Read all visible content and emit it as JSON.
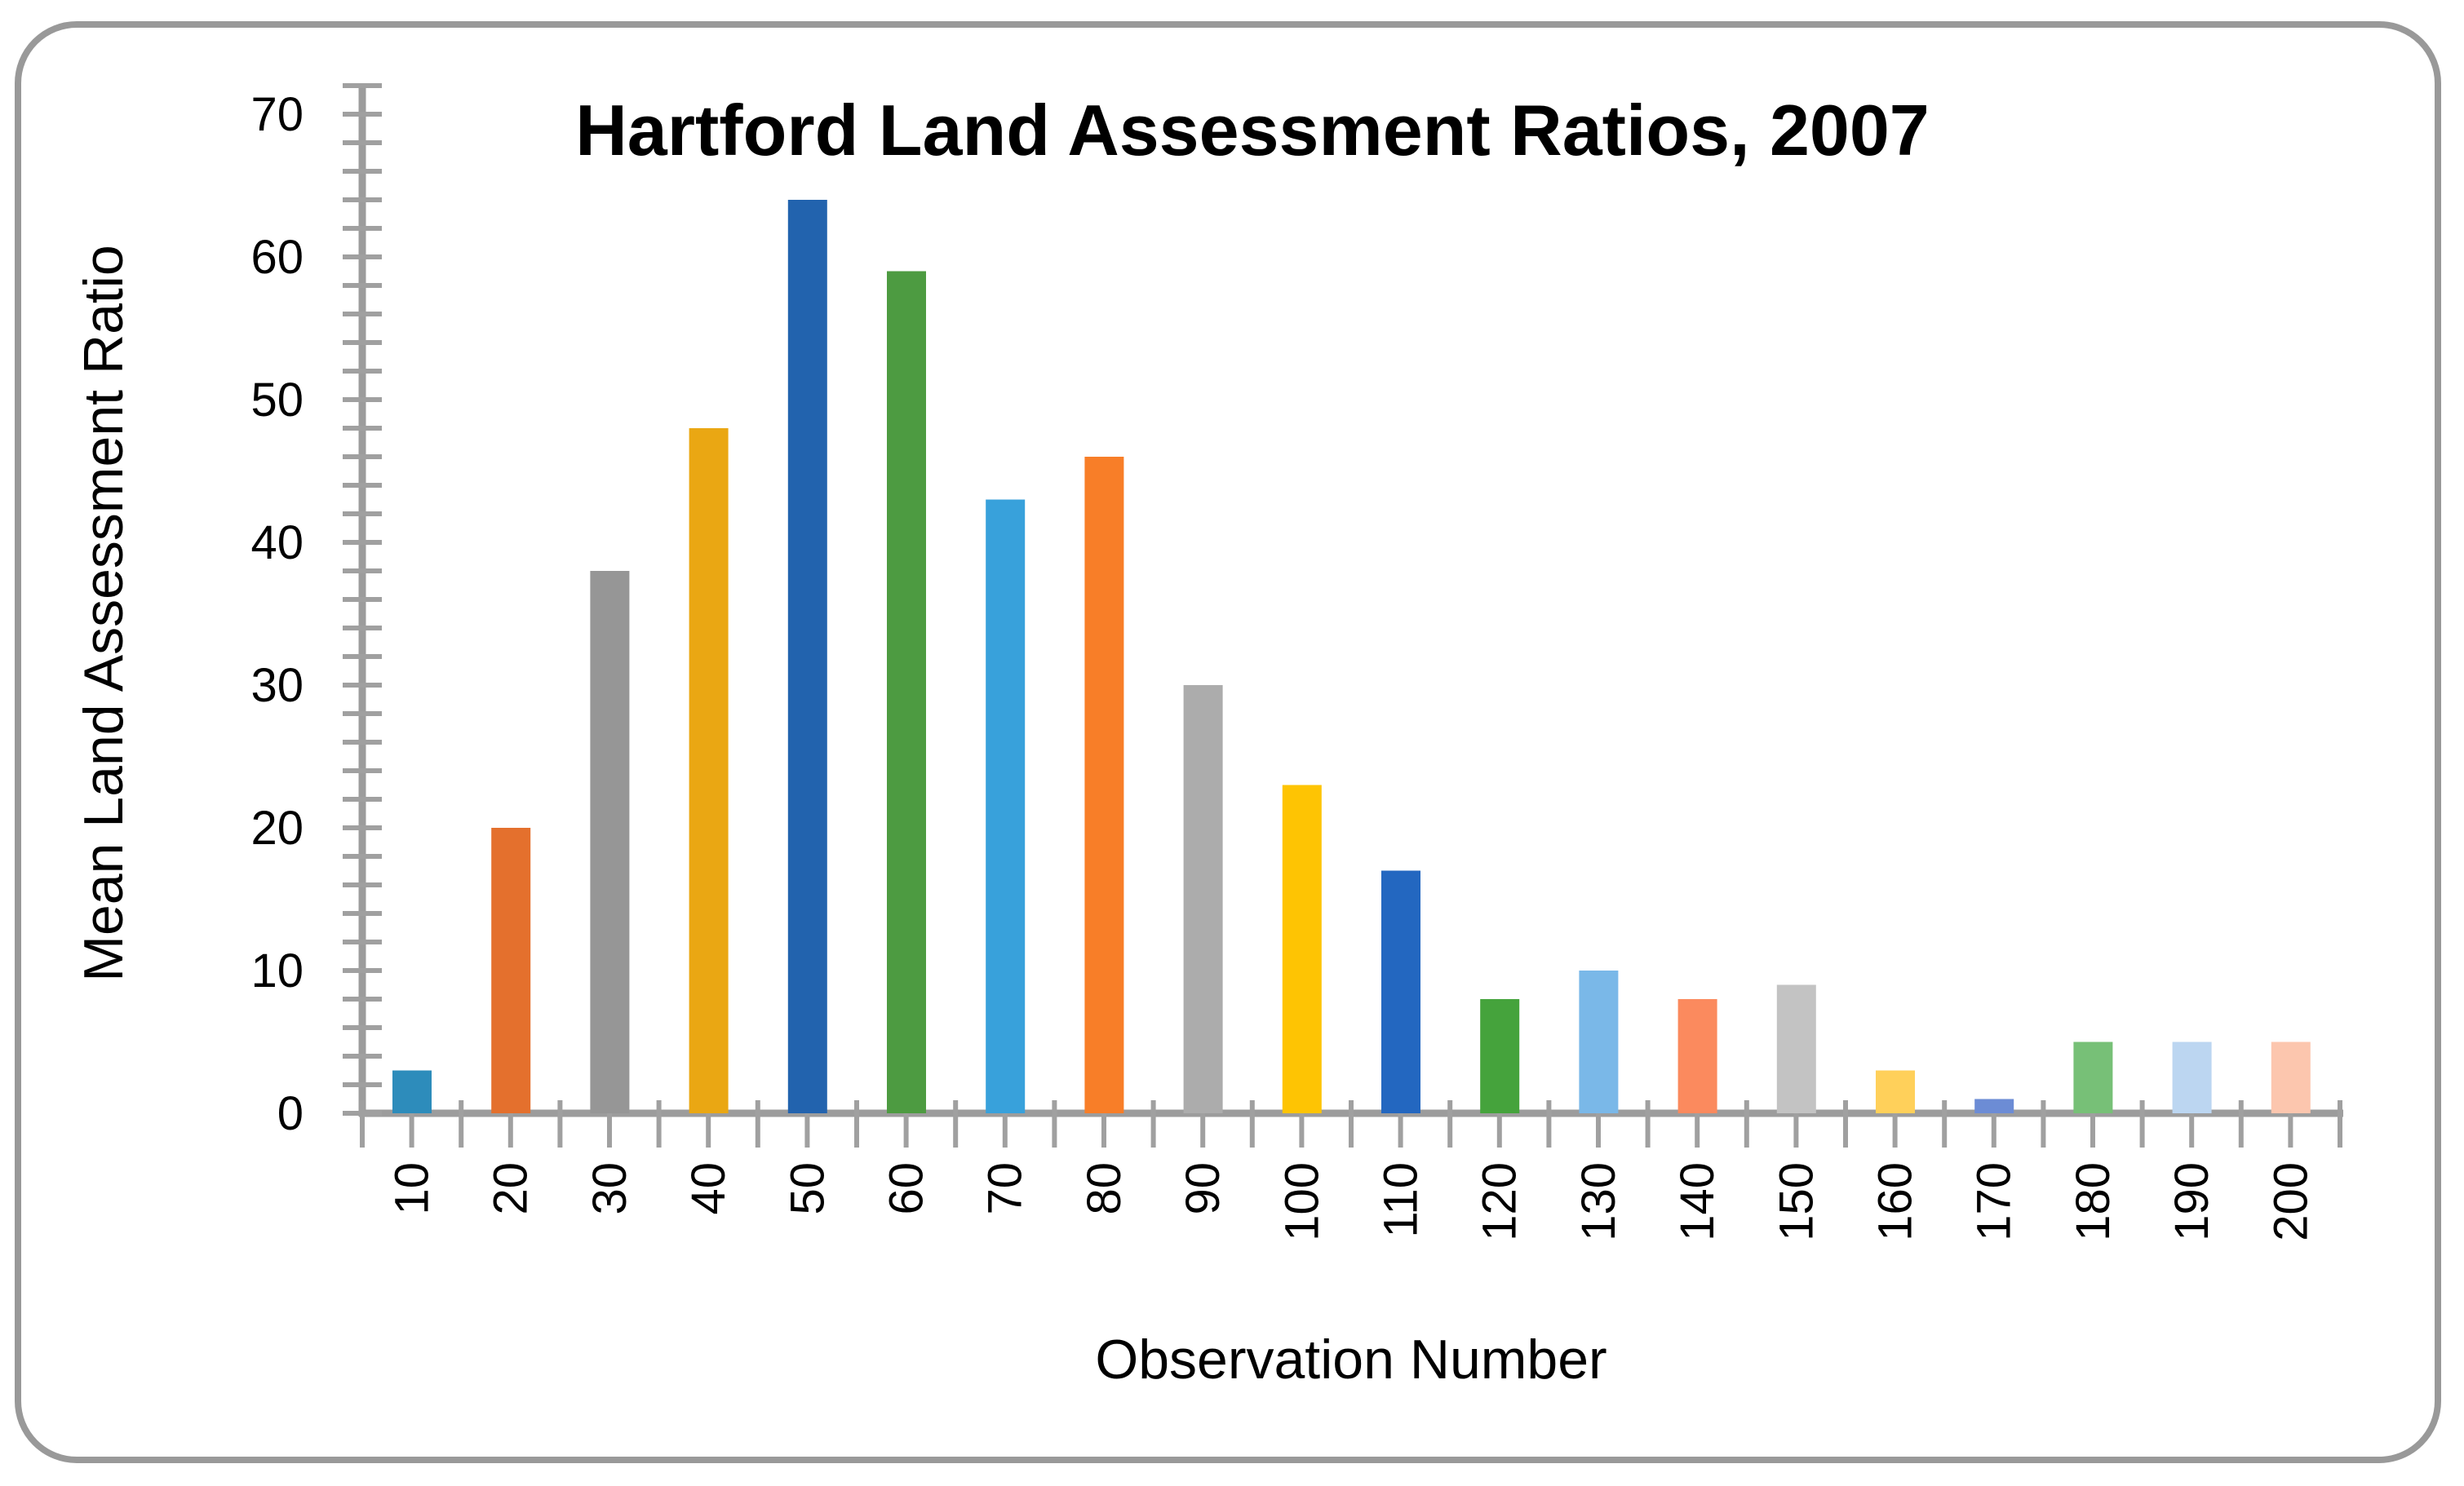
{
  "chart_data": {
    "type": "bar",
    "title": "Hartford Land Assessment Ratios, 2007",
    "xlabel": "Observation Number",
    "ylabel": "Mean Land Assessment Ratio",
    "categories": [
      "10",
      "20",
      "30",
      "40",
      "50",
      "60",
      "70",
      "80",
      "90",
      "100",
      "110",
      "120",
      "130",
      "140",
      "150",
      "160",
      "170",
      "180",
      "190",
      "200"
    ],
    "values": [
      3,
      20,
      38,
      48,
      64,
      59,
      43,
      46,
      30,
      23,
      17,
      8,
      10,
      8,
      9,
      3,
      1,
      5,
      5,
      5
    ],
    "bar_colors": [
      "#2D8CBB",
      "#E4702D",
      "#969696",
      "#EAA713",
      "#2263AE",
      "#4D9B41",
      "#38A1DB",
      "#F87E28",
      "#ACACAC",
      "#FEC403",
      "#2367C0",
      "#45A33C",
      "#7AB8E8",
      "#FB8A5E",
      "#C3C3C3",
      "#FFD05A",
      "#6C8CD5",
      "#77C077",
      "#BCD6F1",
      "#FCC6AE"
    ],
    "ylim": [
      0,
      70
    ],
    "y_major_tick_step": 10,
    "y_minor_tick_step": 2,
    "y_tick_labels": [
      "0",
      "10",
      "20",
      "30",
      "40",
      "50",
      "60",
      "70"
    ],
    "grid": false,
    "legend": "none",
    "x_label_rotation_degrees": -90
  },
  "colors": {
    "background": "#FFFFFF",
    "border": "#999999",
    "axis": "#9C9C9C",
    "tick": "#A0A0A0",
    "text": "#000000"
  }
}
